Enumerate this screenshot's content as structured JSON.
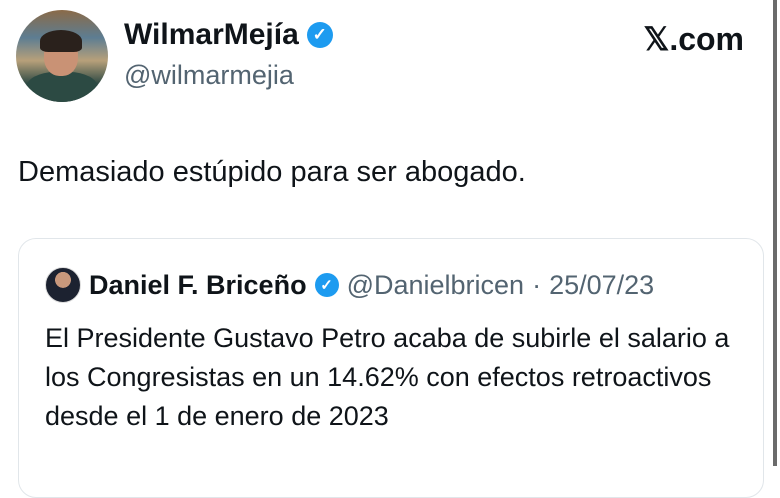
{
  "tweet": {
    "author_name": "WilmarMejía",
    "author_handle": "@wilmarmejia",
    "verified_icon": "verified-badge-icon",
    "brand": "𝕏.com",
    "text": "Demasiado estúpido para ser abogado.",
    "quoted": {
      "author_name": "Daniel F. Briceño",
      "author_handle": "@Danielbricen",
      "separator": "·",
      "date": "25/07/23",
      "text": "El Presidente Gustavo Petro acaba de subirle el salario a los Congresistas en un 14.62% con efectos retroactivos desde el 1 de enero de 2023"
    }
  },
  "colors": {
    "verified": "#1d9bf0",
    "secondary_text": "#536471"
  }
}
